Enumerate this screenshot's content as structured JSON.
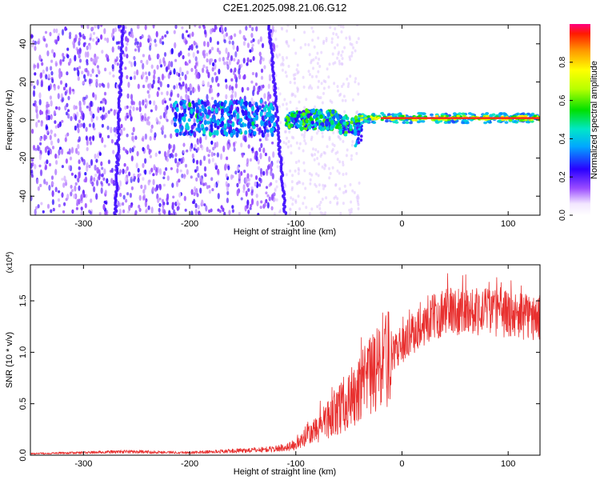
{
  "figure_title": "C2E1.2025.098.21.06.G12",
  "colors": {
    "snr_line": "#e8302f",
    "ridge": "#ff2a1a"
  },
  "chart_data": [
    {
      "type": "heatmap",
      "title": "C2E1.2025.098.21.06.G12",
      "xlabel": "Height of straight line (km)",
      "ylabel": "Frequency (Hz)",
      "xlim": [
        -350,
        130
      ],
      "ylim": [
        -50,
        50
      ],
      "x_ticks": [
        -300,
        -200,
        -100,
        0,
        100
      ],
      "x_tick_labels": [
        "-300",
        "-200",
        "-100",
        "0",
        "100"
      ],
      "y_ticks": [
        -40,
        -20,
        0,
        20,
        40
      ],
      "y_tick_labels": [
        "-40",
        "-20",
        "0",
        "20",
        "40"
      ],
      "colorbar": {
        "label": "Normalized spectral amplitude",
        "range": [
          0,
          1
        ],
        "ticks": [
          0.0,
          0.2,
          0.4,
          0.6,
          0.8
        ],
        "tick_labels": [
          "0.0",
          "0.2",
          "0.4",
          "0.6",
          "0.8"
        ]
      },
      "features": [
        {
          "name": "broadband noise",
          "x_range": [
            -350,
            -120
          ],
          "freq_range": [
            -50,
            50
          ],
          "amplitude": 0.1
        },
        {
          "name": "streak",
          "x_range": [
            -270,
            -263
          ],
          "freq_range": [
            -50,
            50
          ],
          "amplitude": 0.12
        },
        {
          "name": "streak",
          "x_range": [
            -125,
            -110
          ],
          "freq_range": [
            -50,
            50
          ],
          "amplitude": 0.1
        },
        {
          "name": "weak cluster",
          "x_range": [
            -215,
            -120
          ],
          "freq_range": [
            -8,
            10
          ],
          "amplitude": 0.28
        },
        {
          "name": "transition",
          "x_range": [
            -110,
            -40
          ],
          "freq_range": [
            -8,
            8
          ],
          "amplitude": 0.4
        },
        {
          "name": "carrier ridge",
          "x_range": [
            -40,
            130
          ],
          "freq_center": 1,
          "amplitude": 1.0
        }
      ]
    },
    {
      "type": "line",
      "xlabel": "Height of straight line (km)",
      "ylabel": "SNR (10 * v/v)",
      "y_multiplier_label": "(x10",
      "y_multiplier_exp": "4",
      "y_multiplier_close": ")",
      "xlim": [
        -350,
        130
      ],
      "ylim": [
        0,
        18500
      ],
      "x_ticks": [
        -300,
        -200,
        -100,
        0,
        100
      ],
      "x_tick_labels": [
        "-300",
        "-200",
        "-100",
        "0",
        "100"
      ],
      "y_ticks": [
        0,
        5000,
        10000,
        15000
      ],
      "y_tick_labels": [
        "0.0",
        "0.5",
        "1.0",
        "1.5"
      ],
      "series": [
        {
          "name": "SNR",
          "color": "#e8302f",
          "envelope_x": [
            -350,
            -300,
            -260,
            -200,
            -150,
            -120,
            -100,
            -80,
            -60,
            -40,
            -20,
            0,
            20,
            40,
            60,
            80,
            100,
            130
          ],
          "envelope_y": [
            150,
            250,
            350,
            250,
            450,
            600,
            1000,
            2500,
            4500,
            6200,
            8800,
            10800,
            12800,
            14000,
            14100,
            14000,
            13700,
            13300
          ]
        }
      ]
    }
  ]
}
